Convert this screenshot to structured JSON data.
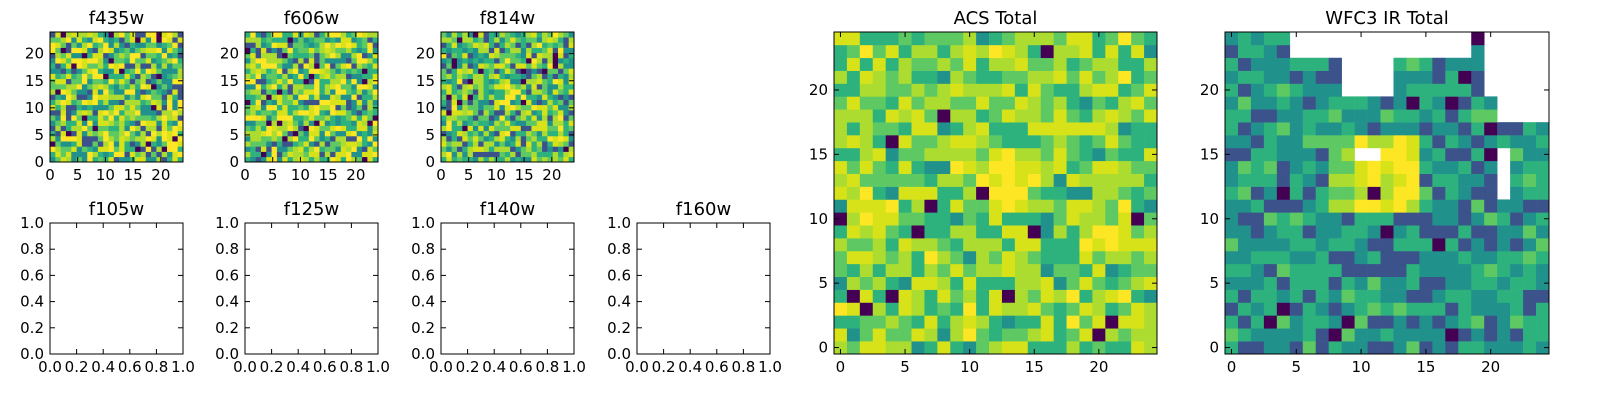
{
  "colormap": [
    "#440154",
    "#3b528b",
    "#21918c",
    "#2db27d",
    "#5ec962",
    "#addc30",
    "#d8e219",
    "#fde725"
  ],
  "chart_data": [
    {
      "panel": "f435w",
      "type": "heatmap",
      "title": "f435w",
      "xlim": [
        0,
        24
      ],
      "ylim": [
        0,
        24
      ],
      "xticks": [
        "0",
        "5",
        "10",
        "15",
        "20"
      ],
      "yticks": [
        "0",
        "5",
        "10",
        "15",
        "20"
      ],
      "grid": false
    },
    {
      "panel": "f606w",
      "type": "heatmap",
      "title": "f606w",
      "xlim": [
        0,
        24
      ],
      "ylim": [
        0,
        24
      ],
      "xticks": [
        "0",
        "5",
        "10",
        "15",
        "20"
      ],
      "yticks": [
        "0",
        "5",
        "10",
        "15",
        "20"
      ],
      "grid": false
    },
    {
      "panel": "f814w",
      "type": "heatmap",
      "title": "f814w",
      "xlim": [
        0,
        24
      ],
      "ylim": [
        0,
        24
      ],
      "xticks": [
        "0",
        "5",
        "10",
        "15",
        "20"
      ],
      "yticks": [
        "0",
        "5",
        "10",
        "15",
        "20"
      ],
      "grid": false
    },
    {
      "panel": "f105w",
      "type": "empty",
      "title": "f105w",
      "xlim": [
        0,
        1
      ],
      "ylim": [
        0,
        1
      ],
      "xticks": [
        "0.0",
        "0.2",
        "0.4",
        "0.6",
        "0.8",
        "1.0"
      ],
      "yticks": [
        "0.0",
        "0.2",
        "0.4",
        "0.6",
        "0.8",
        "1.0"
      ]
    },
    {
      "panel": "f125w",
      "type": "empty",
      "title": "f125w",
      "xlim": [
        0,
        1
      ],
      "ylim": [
        0,
        1
      ],
      "xticks": [
        "0.0",
        "0.2",
        "0.4",
        "0.6",
        "0.8",
        "1.0"
      ],
      "yticks": [
        "0.0",
        "0.2",
        "0.4",
        "0.6",
        "0.8",
        "1.0"
      ]
    },
    {
      "panel": "f140w",
      "type": "empty",
      "title": "f140w",
      "xlim": [
        0,
        1
      ],
      "ylim": [
        0,
        1
      ],
      "xticks": [
        "0.0",
        "0.2",
        "0.4",
        "0.6",
        "0.8",
        "1.0"
      ],
      "yticks": [
        "0.0",
        "0.2",
        "0.4",
        "0.6",
        "0.8",
        "1.0"
      ]
    },
    {
      "panel": "f160w",
      "type": "empty",
      "title": "f160w",
      "xlim": [
        0,
        1
      ],
      "ylim": [
        0,
        1
      ],
      "xticks": [
        "0.0",
        "0.2",
        "0.4",
        "0.6",
        "0.8",
        "1.0"
      ],
      "yticks": [
        "0.0",
        "0.2",
        "0.4",
        "0.6",
        "0.8",
        "1.0"
      ]
    },
    {
      "panel": "acs-total",
      "type": "heatmap",
      "title": "ACS Total",
      "xlim": [
        -0.5,
        24.5
      ],
      "ylim": [
        -0.5,
        24.5
      ],
      "xticks": [
        "0",
        "5",
        "10",
        "15",
        "20"
      ],
      "yticks": [
        "0",
        "5",
        "10",
        "15",
        "20"
      ],
      "grid": false,
      "bright_region": "center near x 12, y 13"
    },
    {
      "panel": "wfc3-ir-total",
      "type": "heatmap",
      "title": "WFC3 IR Total",
      "xlim": [
        -0.5,
        24.5
      ],
      "ylim": [
        -0.5,
        24.5
      ],
      "xticks": [
        "0",
        "5",
        "10",
        "15",
        "20"
      ],
      "yticks": [
        "0",
        "5",
        "10",
        "15",
        "20"
      ],
      "grid": false,
      "bright_region": "x 10-14, y 11-17",
      "masked_region": "top-right (NaN pixels, white)"
    }
  ]
}
